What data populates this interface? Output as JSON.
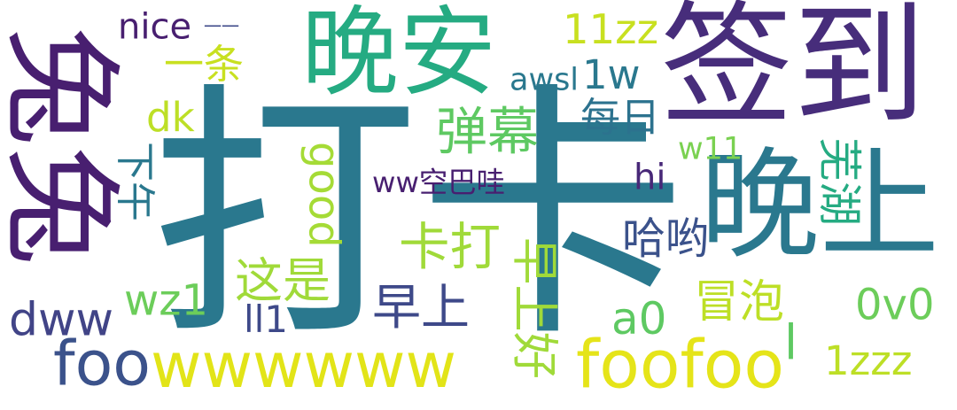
{
  "words": [
    {
      "text": "打卡",
      "color": "#2a788e",
      "orient": "h"
    },
    {
      "text": "签到",
      "color": "#472d7b",
      "orient": "h"
    },
    {
      "text": "晚安",
      "color": "#25ab82",
      "orient": "h"
    },
    {
      "text": "晚上",
      "color": "#2a788e",
      "orient": "h"
    },
    {
      "text": "兔兔",
      "color": "#481f70",
      "orient": "v"
    },
    {
      "text": "wwwwww",
      "color": "#e2e418",
      "orient": "h"
    },
    {
      "text": "foofoo",
      "color": "#e5e419",
      "orient": "h"
    },
    {
      "text": "foo",
      "color": "#3b528b",
      "orient": "h"
    },
    {
      "text": "弹幕",
      "color": "#5ec962",
      "orient": "h"
    },
    {
      "text": "卡打",
      "color": "#a0da39",
      "orient": "h"
    },
    {
      "text": "good",
      "color": "#a5db36",
      "orient": "v"
    },
    {
      "text": "ww空巴哇",
      "color": "#481f70",
      "orient": "h"
    },
    {
      "text": "这是",
      "color": "#a0da39",
      "orient": "h"
    },
    {
      "text": "早上好",
      "color": "#a0da39",
      "orient": "v"
    },
    {
      "text": "哈哟",
      "color": "#3b528b",
      "orient": "h"
    },
    {
      "text": "芜湖",
      "color": "#25ab82",
      "orient": "v"
    },
    {
      "text": "早上",
      "color": "#3e4989",
      "orient": "h"
    },
    {
      "text": "冒泡",
      "color": "#bddf26",
      "orient": "h"
    },
    {
      "text": "a0",
      "color": "#5ec962",
      "orient": "h"
    },
    {
      "text": "0v0",
      "color": "#6ccd5a",
      "orient": "h"
    },
    {
      "text": "1zzz",
      "color": "#bddf26",
      "orient": "h"
    },
    {
      "text": "dww",
      "color": "#414487",
      "orient": "h"
    },
    {
      "text": "wz1",
      "color": "#6ccd5a",
      "orient": "h"
    },
    {
      "text": "ll1",
      "color": "#3e4989",
      "orient": "h"
    },
    {
      "text": "下午",
      "color": "#2a788e",
      "orient": "v"
    },
    {
      "text": "dk",
      "color": "#bddf26",
      "orient": "h"
    },
    {
      "text": "每日",
      "color": "#2c728e",
      "orient": "h"
    },
    {
      "text": "hi",
      "color": "#482878",
      "orient": "h"
    },
    {
      "text": "w11",
      "color": "#7ad151",
      "orient": "h"
    },
    {
      "text": "11zz",
      "color": "#c8e020",
      "orient": "h"
    },
    {
      "text": "awsl",
      "color": "#2a788e",
      "orient": "h"
    },
    {
      "text": "1w",
      "color": "#2a788e",
      "orient": "h"
    },
    {
      "text": "nice",
      "color": "#481f70",
      "orient": "h"
    },
    {
      "text": "一一",
      "color": "#3e4989",
      "orient": "h"
    },
    {
      "text": "一条",
      "color": "#c8e020",
      "orient": "h"
    },
    {
      "text": "l",
      "color": "#5ec962",
      "orient": "h"
    }
  ]
}
